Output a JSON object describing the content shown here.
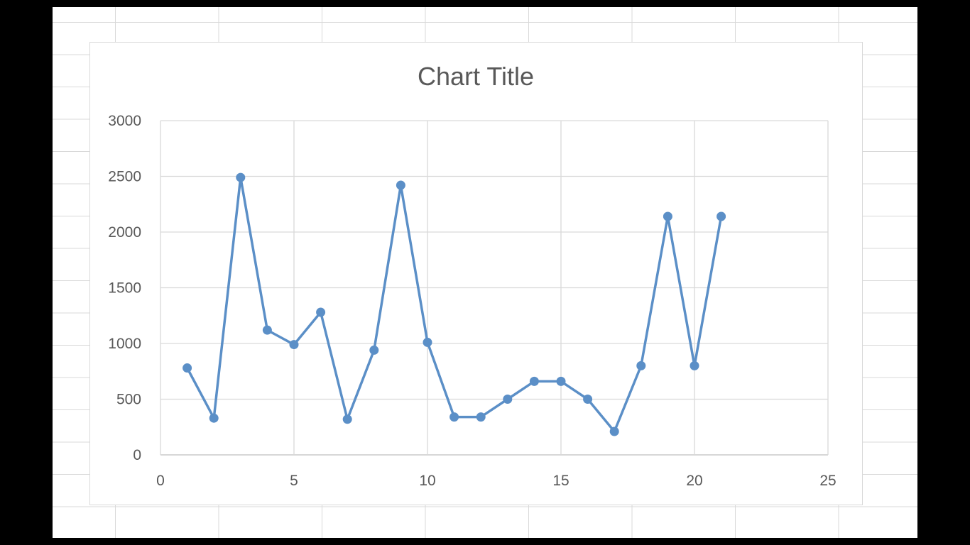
{
  "chart_data": {
    "type": "scatter",
    "title": "Chart Title",
    "xlabel": "",
    "ylabel": "",
    "xlim": [
      0,
      25
    ],
    "ylim": [
      0,
      3000
    ],
    "x_ticks": [
      "0",
      "5",
      "10",
      "15",
      "20",
      "25"
    ],
    "y_ticks": [
      "0",
      "500",
      "1000",
      "1500",
      "2000",
      "2500",
      "3000"
    ],
    "grid": true,
    "legend": "none",
    "series": [
      {
        "color": "#5b8fc7",
        "line": true,
        "markers": true,
        "x": [
          1,
          2,
          3,
          4,
          5,
          6,
          7,
          8,
          9,
          10,
          11,
          12,
          13,
          14,
          15,
          16,
          17,
          18,
          19,
          20,
          21
        ],
        "y": [
          780,
          330,
          2490,
          1120,
          990,
          1280,
          320,
          940,
          2420,
          1010,
          340,
          340,
          500,
          660,
          660,
          500,
          210,
          800,
          2140,
          800,
          2140
        ]
      }
    ]
  }
}
